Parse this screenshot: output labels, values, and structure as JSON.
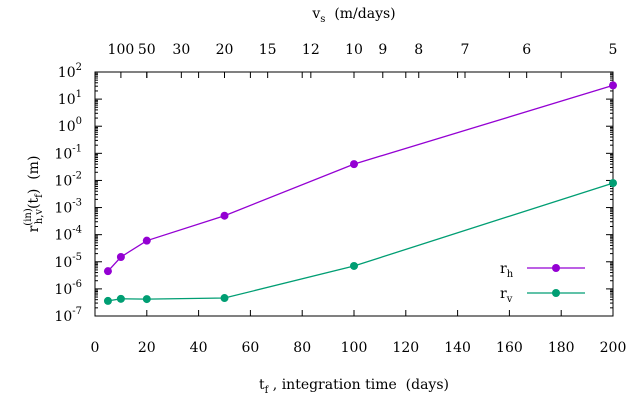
{
  "chart_data": {
    "type": "line",
    "xlabel": "t",
    "xlabel_sub": "f",
    "xlabel_rest": " , integration time  (days)",
    "top_xlabel": "v",
    "top_xlabel_sub": "s",
    "top_xlabel_rest": "  (m/days)",
    "ylabel": "r",
    "ylabel_sup": "(in)",
    "ylabel_sub": "h,v",
    "ylabel_mid": "(t",
    "ylabel_mid_sub": "f",
    "ylabel_rest": ")  (m)",
    "xlim": [
      0,
      200
    ],
    "ylim": [
      1e-07,
      100
    ],
    "y_scale": "log",
    "x_ticks": [
      "0",
      "20",
      "40",
      "60",
      "80",
      "100",
      "120",
      "140",
      "160",
      "180",
      "200"
    ],
    "y_ticks": [
      {
        "mantissa": "10",
        "exp": "-7"
      },
      {
        "mantissa": "10",
        "exp": "-6"
      },
      {
        "mantissa": "10",
        "exp": "-5"
      },
      {
        "mantissa": "10",
        "exp": "-4"
      },
      {
        "mantissa": "10",
        "exp": "-3"
      },
      {
        "mantissa": "10",
        "exp": "-2"
      },
      {
        "mantissa": "10",
        "exp": "-1"
      },
      {
        "mantissa": "10",
        "exp": "0"
      },
      {
        "mantissa": "10",
        "exp": "1"
      },
      {
        "mantissa": "10",
        "exp": "2"
      }
    ],
    "top_ticks": [
      {
        "label": "100",
        "v": 100
      },
      {
        "label": "50",
        "v": 50
      },
      {
        "label": "30",
        "v": 30
      },
      {
        "label": "20",
        "v": 20
      },
      {
        "label": "15",
        "v": 15
      },
      {
        "label": "12",
        "v": 12
      },
      {
        "label": "10",
        "v": 10
      },
      {
        "label": "9",
        "v": 9
      },
      {
        "label": "8",
        "v": 8
      },
      {
        "label": "7",
        "v": 7
      },
      {
        "label": "6",
        "v": 6
      },
      {
        "label": "5",
        "v": 5
      }
    ],
    "top_axis_relation": "t = 1000 / v",
    "grid": false,
    "legend_position": "bottom-right",
    "series": [
      {
        "name": "r",
        "name_sub": "h",
        "color": "#9400d3",
        "x": [
          5,
          10,
          20,
          50,
          100,
          200
        ],
        "y": [
          4.5e-06,
          1.5e-05,
          6e-05,
          0.0005,
          0.04,
          32
        ]
      },
      {
        "name": "r",
        "name_sub": "v",
        "color": "#009e73",
        "x": [
          5,
          10,
          20,
          50,
          100,
          200
        ],
        "y": [
          3.6e-07,
          4.3e-07,
          4.2e-07,
          4.6e-07,
          7e-06,
          0.008
        ]
      }
    ]
  }
}
